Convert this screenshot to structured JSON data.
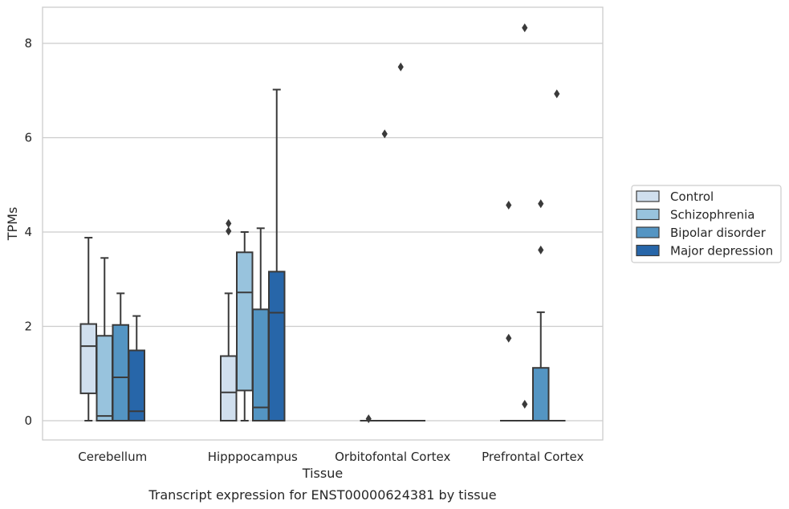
{
  "caption": "Transcript expression for ENST00000624381 by tissue",
  "chart_data": {
    "type": "box",
    "xlabel": "Tissue",
    "ylabel": "TPMs",
    "ylim": [
      -0.4,
      8.75
    ],
    "yticks": [
      0,
      2,
      4,
      6,
      8
    ],
    "grid": true,
    "legend_placement": "right",
    "categories": [
      "Cerebellum",
      "Hipppocampus",
      "Orbitofontal Cortex",
      "Prefrontal Cortex"
    ],
    "series": [
      {
        "name": "Control",
        "color": "#d0dfee",
        "boxes": [
          {
            "whislo": 0.0,
            "q1": 0.58,
            "med": 1.58,
            "q3": 2.05,
            "whishi": 3.88,
            "fliers": []
          },
          {
            "whislo": 0.0,
            "q1": 0.0,
            "med": 0.6,
            "q3": 1.37,
            "whishi": 2.7,
            "fliers": [
              4.02,
              4.18
            ]
          },
          {
            "whislo": 0.0,
            "q1": 0.0,
            "med": 0.0,
            "q3": 0.0,
            "whishi": 0.0,
            "fliers": [
              0.04
            ]
          },
          {
            "whislo": 0.0,
            "q1": 0.0,
            "med": 0.0,
            "q3": 0.0,
            "whishi": 0.0,
            "fliers": [
              1.75,
              4.57
            ]
          }
        ]
      },
      {
        "name": "Schizophrenia",
        "color": "#98c3dd",
        "boxes": [
          {
            "whislo": 0.0,
            "q1": 0.0,
            "med": 0.1,
            "q3": 1.8,
            "whishi": 3.45,
            "fliers": []
          },
          {
            "whislo": 0.0,
            "q1": 0.64,
            "med": 2.72,
            "q3": 3.57,
            "whishi": 4.0,
            "fliers": []
          },
          {
            "whislo": 0.0,
            "q1": 0.0,
            "med": 0.0,
            "q3": 0.0,
            "whishi": 0.0,
            "fliers": [
              6.08
            ]
          },
          {
            "whislo": 0.0,
            "q1": 0.0,
            "med": 0.0,
            "q3": 0.0,
            "whishi": 0.0,
            "fliers": [
              0.35,
              8.33
            ]
          }
        ]
      },
      {
        "name": "Bipolar disorder",
        "color": "#5495c3",
        "boxes": [
          {
            "whislo": 0.0,
            "q1": 0.0,
            "med": 0.92,
            "q3": 2.03,
            "whishi": 2.7,
            "fliers": []
          },
          {
            "whislo": 0.0,
            "q1": 0.0,
            "med": 0.28,
            "q3": 2.36,
            "whishi": 4.08,
            "fliers": []
          },
          {
            "whislo": 0.0,
            "q1": 0.0,
            "med": 0.0,
            "q3": 0.0,
            "whishi": 0.0,
            "fliers": [
              7.5
            ]
          },
          {
            "whislo": 0.0,
            "q1": 0.0,
            "med": 0.0,
            "q3": 1.12,
            "whishi": 2.3,
            "fliers": [
              3.62,
              4.6
            ]
          }
        ]
      },
      {
        "name": "Major depression",
        "color": "#2766a9",
        "boxes": [
          {
            "whislo": 0.0,
            "q1": 0.0,
            "med": 0.2,
            "q3": 1.49,
            "whishi": 2.22,
            "fliers": []
          },
          {
            "whislo": 0.0,
            "q1": 0.0,
            "med": 2.29,
            "q3": 3.16,
            "whishi": 7.02,
            "fliers": []
          },
          {
            "whislo": 0.0,
            "q1": 0.0,
            "med": 0.0,
            "q3": 0.0,
            "whishi": 0.0,
            "fliers": []
          },
          {
            "whislo": 0.0,
            "q1": 0.0,
            "med": 0.0,
            "q3": 0.0,
            "whishi": 0.0,
            "fliers": [
              6.93
            ]
          }
        ]
      }
    ]
  }
}
